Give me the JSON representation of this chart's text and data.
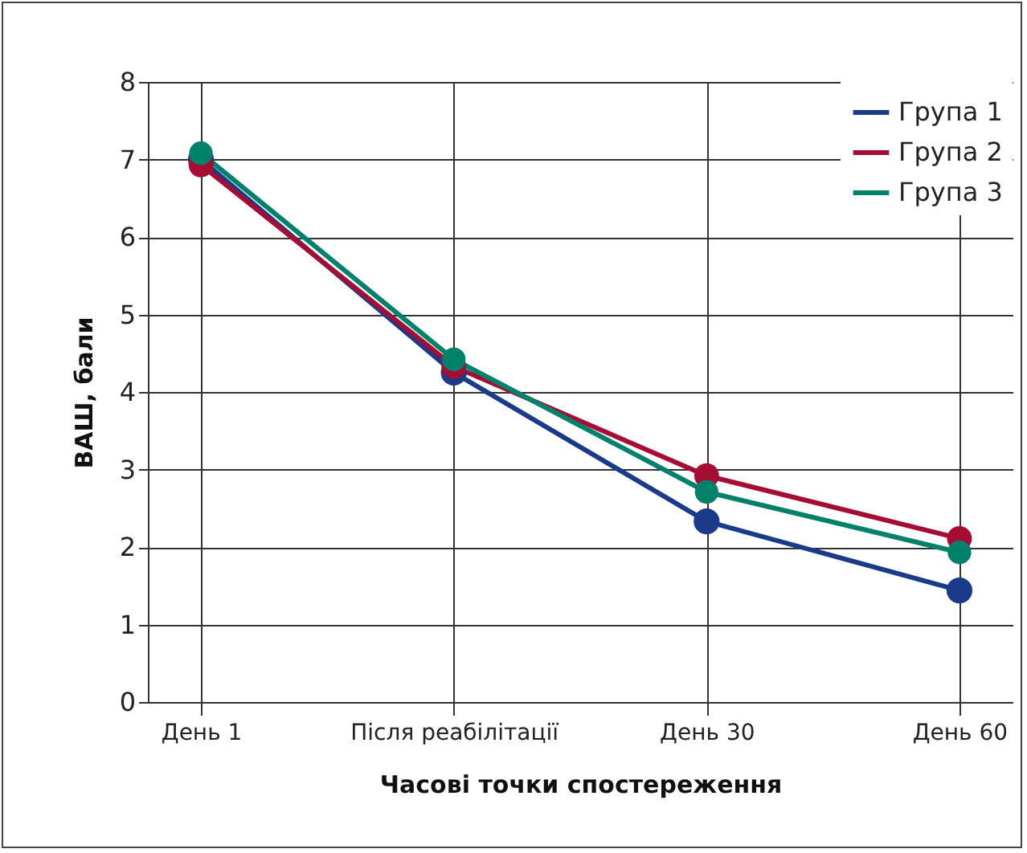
{
  "chart_data": {
    "type": "line",
    "xlabel": "Часові точки спостереження",
    "ylabel": "ВАШ, бали",
    "categories": [
      "День 1",
      "Після реабілітації",
      "День 30",
      "День 60"
    ],
    "series": [
      {
        "name": "Група 1",
        "color": "#1a3a8a",
        "values": [
          7.0,
          4.25,
          2.33,
          1.44
        ]
      },
      {
        "name": "Група 2",
        "color": "#a50d35",
        "values": [
          6.93,
          4.33,
          2.92,
          2.11
        ]
      },
      {
        "name": "Група 3",
        "color": "#00826a",
        "values": [
          7.08,
          4.42,
          2.71,
          1.93
        ]
      }
    ],
    "ylim": [
      0,
      8
    ],
    "yticks": [
      0,
      1,
      2,
      3,
      4,
      5,
      6,
      7,
      8
    ],
    "grid": true,
    "legend": "top right",
    "marker": "circle",
    "line_style": "solid"
  }
}
